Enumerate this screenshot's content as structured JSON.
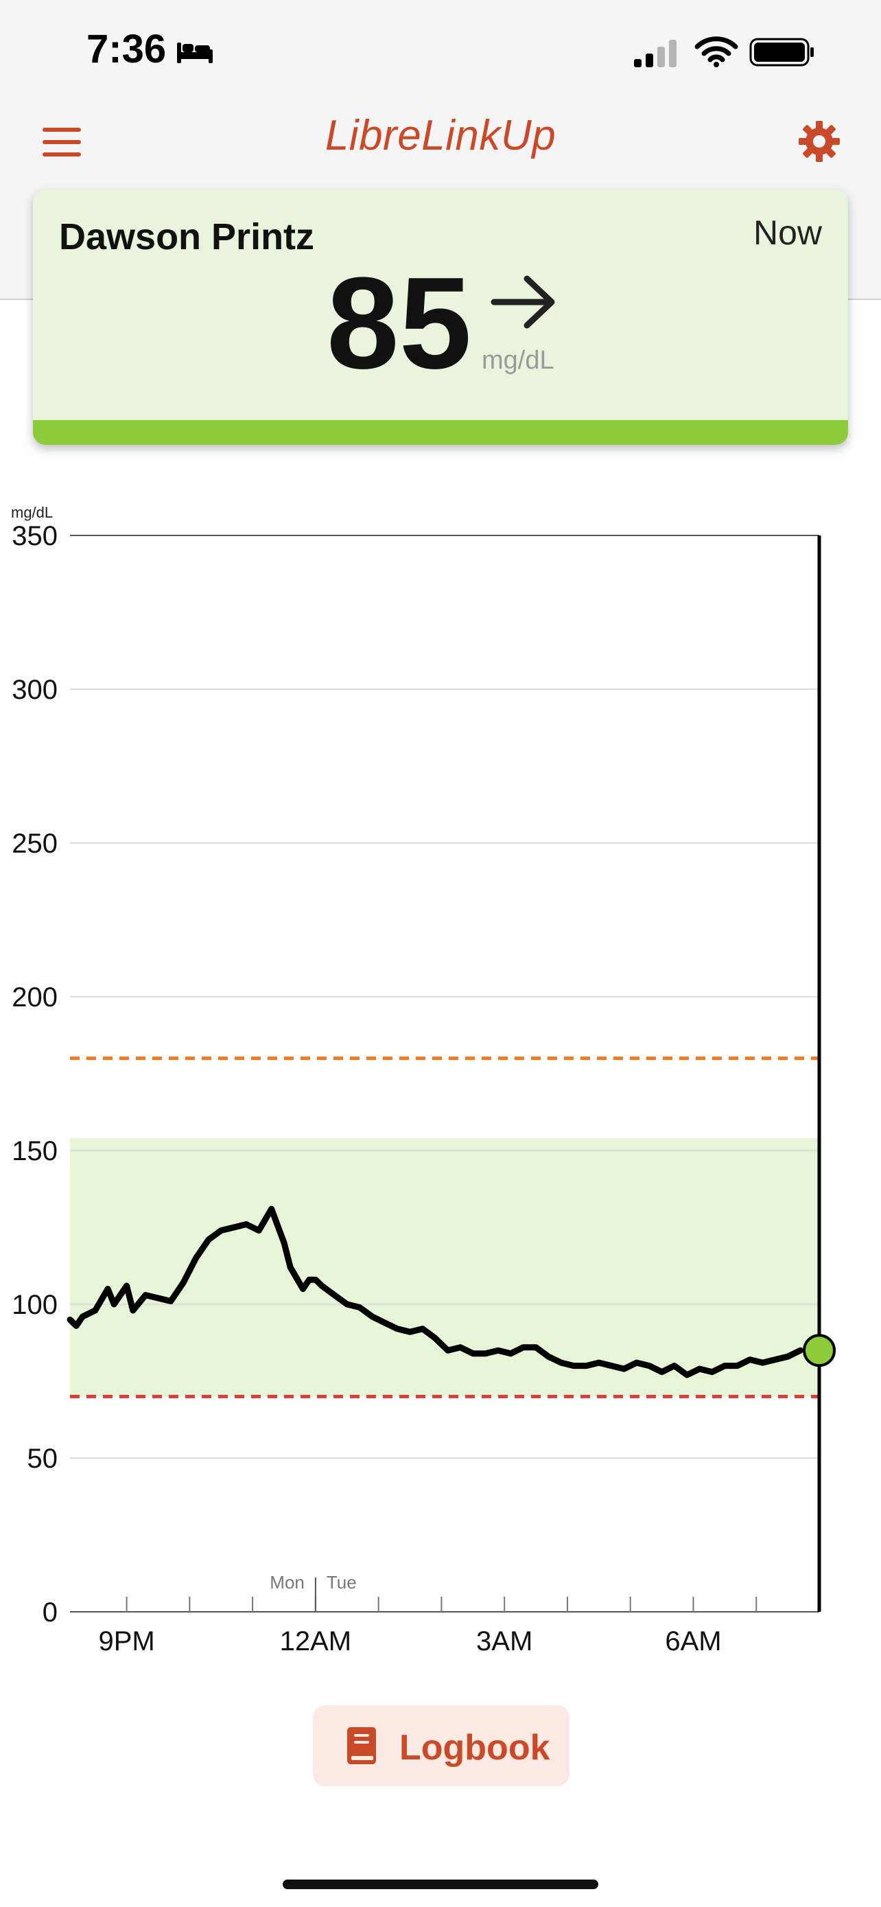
{
  "status_bar": {
    "time": "7:36"
  },
  "header": {
    "title": "LibreLinkUp"
  },
  "card": {
    "patient_name": "Dawson Printz",
    "timestamp": "Now",
    "glucose_value": "85",
    "unit": "mg/dL",
    "trend": "steady",
    "status_color": "#8dcc3c"
  },
  "chart_data": {
    "type": "line",
    "ylabel": "mg/dL",
    "ylim": [
      0,
      350
    ],
    "yticks": [
      0,
      50,
      100,
      150,
      200,
      250,
      300,
      350
    ],
    "x_range_hours": [
      20.0,
      28.1
    ],
    "xticks": [
      {
        "hour": 21,
        "label": "9PM"
      },
      {
        "hour": 24,
        "label": "12AM"
      },
      {
        "hour": 27,
        "label": "3AM"
      },
      {
        "hour": 30,
        "label": "6AM"
      }
    ],
    "day_divider": {
      "hour": 24,
      "left_label": "Mon",
      "right_label": "Tue"
    },
    "target_range": [
      70,
      154
    ],
    "high_threshold": 180,
    "low_threshold": 70,
    "colors": {
      "target_fill": "#e6f4d8",
      "high_line": "#ee7a22",
      "low_line": "#dc3b31",
      "series": "#000000",
      "current_point": "#8dcc3c"
    },
    "series": [
      {
        "x": [
          20.1,
          20.2,
          20.3,
          20.5,
          20.7,
          20.8,
          21.0,
          21.1,
          21.3,
          21.5,
          21.7,
          21.9,
          22.1,
          22.3,
          22.5,
          22.7,
          22.9,
          23.1,
          23.3,
          23.5,
          23.6,
          23.8,
          23.9,
          24.0,
          24.1,
          24.3,
          24.5,
          24.7,
          24.9,
          25.1,
          25.3,
          25.5,
          25.7,
          25.9,
          26.1,
          26.3,
          26.5,
          26.7,
          26.9,
          27.1,
          27.3,
          27.5,
          27.7,
          27.9,
          28.1,
          28.3,
          28.5,
          28.7,
          28.9,
          29.1,
          29.3,
          29.5,
          29.7,
          29.9,
          30.1,
          30.3,
          30.5,
          30.7,
          30.9,
          31.1,
          31.3,
          31.5,
          31.7
        ],
        "y": [
          95,
          93,
          96,
          98,
          105,
          100,
          106,
          98,
          103,
          102,
          101,
          107,
          115,
          121,
          124,
          125,
          126,
          124,
          131,
          120,
          112,
          105,
          108,
          108,
          106,
          103,
          100,
          99,
          96,
          94,
          92,
          91,
          92,
          89,
          85,
          86,
          84,
          84,
          85,
          84,
          86,
          86,
          83,
          81,
          80,
          80,
          81,
          80,
          79,
          81,
          80,
          78,
          80,
          77,
          79,
          78,
          80,
          80,
          82,
          81,
          82,
          83,
          85
        ]
      }
    ],
    "current": {
      "value": 85
    }
  },
  "logbook": {
    "label": "Logbook"
  }
}
